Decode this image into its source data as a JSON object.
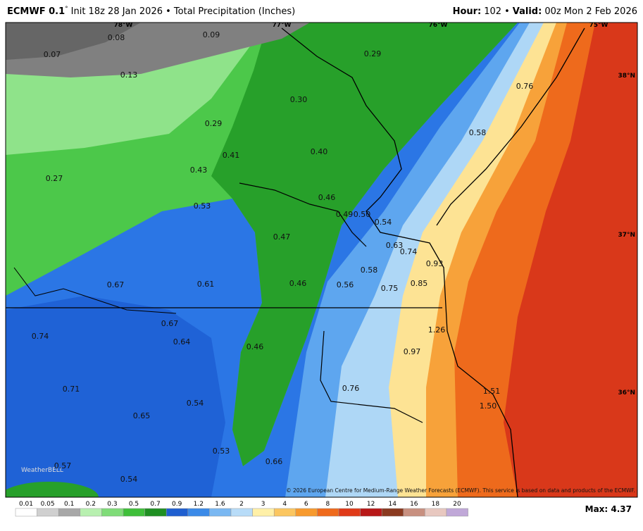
{
  "header": {
    "model": "ECMWF 0.1",
    "degree": "°",
    "title": "Init 18z 28 Jan 2026 • Total Precipitation (Inches)",
    "hour_label": "Hour:",
    "hour": "102",
    "sep": "•",
    "valid_label": "Valid:",
    "valid": "00z Mon 2 Feb 2026"
  },
  "map": {
    "lon_labels": [
      "78°W",
      "77°W",
      "76°W",
      "75°W"
    ],
    "lat_labels": [
      "38°N",
      "37°N",
      "36°N"
    ],
    "labels": [
      "0.08",
      "0.09",
      "0.07",
      "0.29",
      "0.13",
      "0.76",
      "0.30",
      "0.29",
      "0.58",
      "0.40",
      "0.41",
      "0.43",
      "0.27",
      "0.46",
      "0.53",
      "0.49",
      "0.50",
      "0.54",
      "0.47",
      "0.63",
      "0.74",
      "0.93",
      "0.58",
      "0.67",
      "0.61",
      "0.46",
      "0.56",
      "0.75",
      "0.85",
      "0.67",
      "1.26",
      "0.74",
      "0.64",
      "0.46",
      "0.97",
      "0.71",
      "0.76",
      "1.51",
      "0.54",
      "1.50",
      "0.65",
      "0.53",
      "0.66",
      "0.57",
      "0.54"
    ],
    "logo": "WeatherBELL",
    "copyright": "© 2026 European Centre for Medium-Range Weather Forecasts (ECMWF). This service is based on data and products of the ECMWF."
  },
  "colorbar": {
    "labels": [
      "0.01",
      "0.05",
      "0.1",
      "0.2",
      "0.3",
      "0.5",
      "0.7",
      "0.9",
      "1.2",
      "1.6",
      "2",
      "3",
      "4",
      "6",
      "8",
      "10",
      "12",
      "14",
      "16",
      "18",
      "20"
    ]
  },
  "footer": {
    "max": "Max: 4.37"
  }
}
